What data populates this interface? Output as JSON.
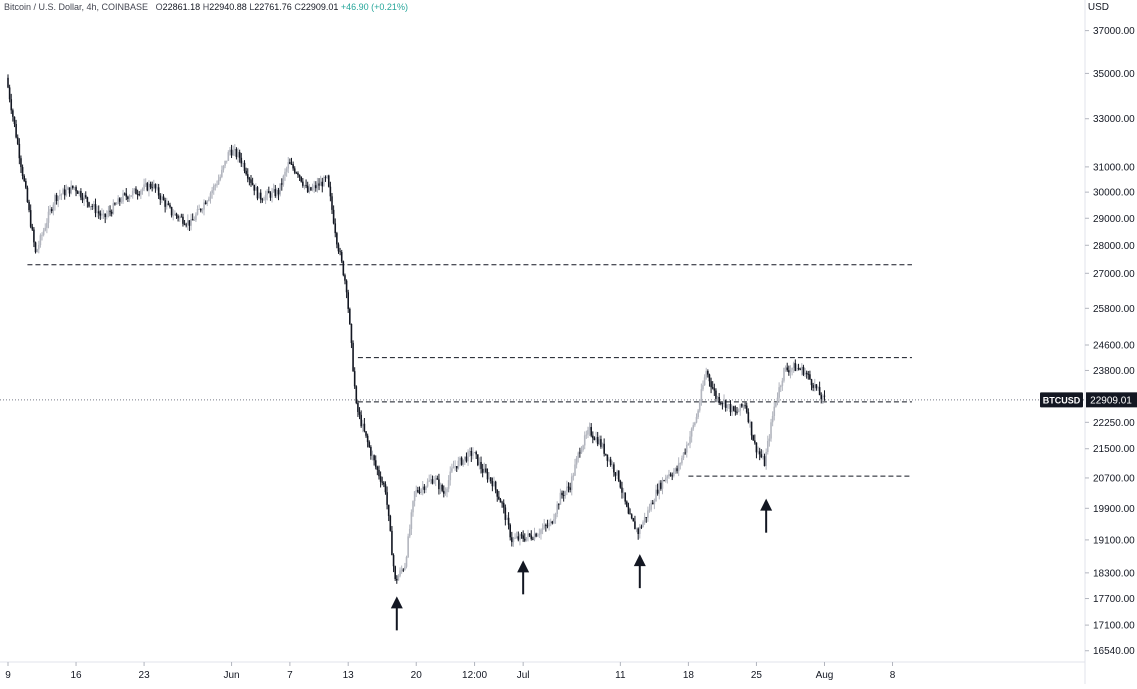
{
  "header": {
    "symbol_title": "Bitcoin / U.S. Dollar, 4h, COINBASE",
    "ohlc": [
      {
        "label": "O",
        "value": "22861.18"
      },
      {
        "label": "H",
        "value": "22940.88"
      },
      {
        "label": "L",
        "value": "22761.76"
      },
      {
        "label": "C",
        "value": "22909.01"
      }
    ],
    "change": "+46.90 (+0.21%)"
  },
  "price_axis": {
    "unit": "USD",
    "ticks": [
      "37000.00",
      "35000.00",
      "33000.00",
      "31000.00",
      "30000.00",
      "29000.00",
      "28000.00",
      "27000.00",
      "25800.00",
      "24600.00",
      "23800.00",
      "22250.00",
      "21500.00",
      "20700.00",
      "19900.00",
      "19100.00",
      "18300.00",
      "17700.00",
      "17100.00",
      "16540.00"
    ]
  },
  "time_axis": {
    "ticks": [
      "9",
      "16",
      "23",
      "Jun",
      "7",
      "13",
      "20",
      "12:00",
      "Jul",
      "11",
      "18",
      "25",
      "Aug",
      "8"
    ]
  },
  "last_price": {
    "symbol": "BTCUSD",
    "value": "22909.01"
  },
  "chart_data": {
    "type": "candlestick",
    "title": "Bitcoin / U.S. Dollar, 4h, COINBASE",
    "xlabel": "",
    "ylabel": "USD",
    "y_scale": "log",
    "ylim": [
      16300,
      38500
    ],
    "x_ticks": [
      "9",
      "16",
      "23",
      "Jun",
      "7",
      "13",
      "20",
      "12:00",
      "Jul",
      "11",
      "18",
      "25",
      "Aug",
      "8"
    ],
    "price_path": [
      {
        "date": "2022-05-09",
        "price": 34800
      },
      {
        "date": "2022-05-11",
        "price": 30000
      },
      {
        "date": "2022-05-12",
        "price": 27700
      },
      {
        "date": "2022-05-14",
        "price": 29800
      },
      {
        "date": "2022-05-16",
        "price": 30200
      },
      {
        "date": "2022-05-19",
        "price": 29000
      },
      {
        "date": "2022-05-21",
        "price": 29800
      },
      {
        "date": "2022-05-24",
        "price": 30300
      },
      {
        "date": "2022-05-26",
        "price": 29200
      },
      {
        "date": "2022-05-28",
        "price": 28800
      },
      {
        "date": "2022-05-31",
        "price": 30600
      },
      {
        "date": "2022-06-01",
        "price": 31700
      },
      {
        "date": "2022-06-02",
        "price": 31400
      },
      {
        "date": "2022-06-04",
        "price": 29800
      },
      {
        "date": "2022-06-06",
        "price": 30000
      },
      {
        "date": "2022-06-07",
        "price": 31100
      },
      {
        "date": "2022-06-08",
        "price": 30800
      },
      {
        "date": "2022-06-09",
        "price": 30000
      },
      {
        "date": "2022-06-11",
        "price": 30500
      },
      {
        "date": "2022-06-12",
        "price": 28200
      },
      {
        "date": "2022-06-13",
        "price": 26500
      },
      {
        "date": "2022-06-14",
        "price": 22700
      },
      {
        "date": "2022-06-15",
        "price": 21800
      },
      {
        "date": "2022-06-16",
        "price": 21000
      },
      {
        "date": "2022-06-17",
        "price": 20400
      },
      {
        "date": "2022-06-18",
        "price": 18100
      },
      {
        "date": "2022-06-19",
        "price": 18500
      },
      {
        "date": "2022-06-20",
        "price": 20300
      },
      {
        "date": "2022-06-22",
        "price": 20700
      },
      {
        "date": "2022-06-23",
        "price": 20300
      },
      {
        "date": "2022-06-24",
        "price": 21000
      },
      {
        "date": "2022-06-26",
        "price": 21400
      },
      {
        "date": "2022-06-27",
        "price": 20900
      },
      {
        "date": "2022-06-28",
        "price": 20600
      },
      {
        "date": "2022-06-29",
        "price": 20000
      },
      {
        "date": "2022-06-30",
        "price": 19100
      },
      {
        "date": "2022-07-02",
        "price": 19200
      },
      {
        "date": "2022-07-04",
        "price": 19500
      },
      {
        "date": "2022-07-05",
        "price": 20200
      },
      {
        "date": "2022-07-06",
        "price": 20500
      },
      {
        "date": "2022-07-07",
        "price": 21500
      },
      {
        "date": "2022-07-08",
        "price": 22000
      },
      {
        "date": "2022-07-09",
        "price": 21700
      },
      {
        "date": "2022-07-10",
        "price": 21200
      },
      {
        "date": "2022-07-11",
        "price": 20700
      },
      {
        "date": "2022-07-12",
        "price": 19700
      },
      {
        "date": "2022-07-13",
        "price": 19300
      },
      {
        "date": "2022-07-14",
        "price": 19800
      },
      {
        "date": "2022-07-15",
        "price": 20400
      },
      {
        "date": "2022-07-16",
        "price": 20800
      },
      {
        "date": "2022-07-17",
        "price": 20900
      },
      {
        "date": "2022-07-18",
        "price": 21600
      },
      {
        "date": "2022-07-19",
        "price": 22400
      },
      {
        "date": "2022-07-20",
        "price": 23800
      },
      {
        "date": "2022-07-21",
        "price": 23000
      },
      {
        "date": "2022-07-22",
        "price": 22800
      },
      {
        "date": "2022-07-23",
        "price": 22500
      },
      {
        "date": "2022-07-24",
        "price": 22800
      },
      {
        "date": "2022-07-25",
        "price": 21600
      },
      {
        "date": "2022-07-26",
        "price": 21100
      },
      {
        "date": "2022-07-27",
        "price": 22700
      },
      {
        "date": "2022-07-28",
        "price": 23800
      },
      {
        "date": "2022-07-29",
        "price": 23900
      },
      {
        "date": "2022-07-30",
        "price": 23800
      },
      {
        "date": "2022-07-31",
        "price": 23400
      },
      {
        "date": "2022-08-01",
        "price": 22909
      }
    ],
    "horizontal_levels": [
      {
        "price": 27300,
        "from": "2022-05-11",
        "to": "2022-08-10"
      },
      {
        "price": 24200,
        "from": "2022-06-14",
        "to": "2022-08-10"
      },
      {
        "price": 22850,
        "from": "2022-06-14",
        "to": "2022-08-10"
      },
      {
        "price": 20750,
        "from": "2022-07-18",
        "to": "2022-08-10"
      }
    ],
    "arrows": [
      {
        "date": "2022-06-18",
        "price": 17750
      },
      {
        "date": "2022-07-01",
        "price": 18600
      },
      {
        "date": "2022-07-13",
        "price": 18750
      },
      {
        "date": "2022-07-26",
        "price": 20150
      }
    ],
    "last_price": 22909.01
  }
}
